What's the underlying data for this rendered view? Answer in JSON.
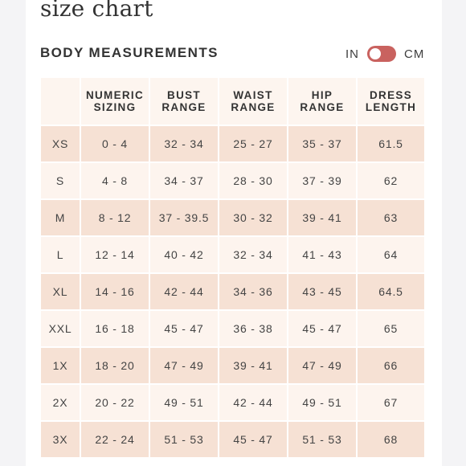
{
  "page": {
    "title": "size chart"
  },
  "section": {
    "title": "BODY MEASUREMENTS"
  },
  "unit_toggle": {
    "left_label": "IN",
    "right_label": "CM",
    "selected": "IN",
    "accent": "#c9625f"
  },
  "table": {
    "headers": [
      [
        "NUMERIC",
        "SIZING"
      ],
      [
        "BUST",
        "RANGE"
      ],
      [
        "WAIST",
        "RANGE"
      ],
      [
        "HIP",
        "RANGE"
      ],
      [
        "DRESS",
        "LENGTH"
      ]
    ],
    "rows": [
      [
        "XS",
        "0 - 4",
        "32 - 34",
        "25 - 27",
        "35 - 37",
        "61.5"
      ],
      [
        "S",
        "4 - 8",
        "34 - 37",
        "28 - 30",
        "37 - 39",
        "62"
      ],
      [
        "M",
        "8 - 12",
        "37 - 39.5",
        "30 - 32",
        "39 - 41",
        "63"
      ],
      [
        "L",
        "12 - 14",
        "40 - 42",
        "32 - 34",
        "41 - 43",
        "64"
      ],
      [
        "XL",
        "14 - 16",
        "42 - 44",
        "34 - 36",
        "43 - 45",
        "64.5"
      ],
      [
        "XXL",
        "16 - 18",
        "45 - 47",
        "36 - 38",
        "45 - 47",
        "65"
      ],
      [
        "1X",
        "18 - 20",
        "47 - 49",
        "39 - 41",
        "47 - 49",
        "66"
      ],
      [
        "2X",
        "20 - 22",
        "49 - 51",
        "42 - 44",
        "49 - 51",
        "67"
      ],
      [
        "3X",
        "22 - 24",
        "51 - 53",
        "45 - 47",
        "51 - 53",
        "68"
      ]
    ]
  }
}
